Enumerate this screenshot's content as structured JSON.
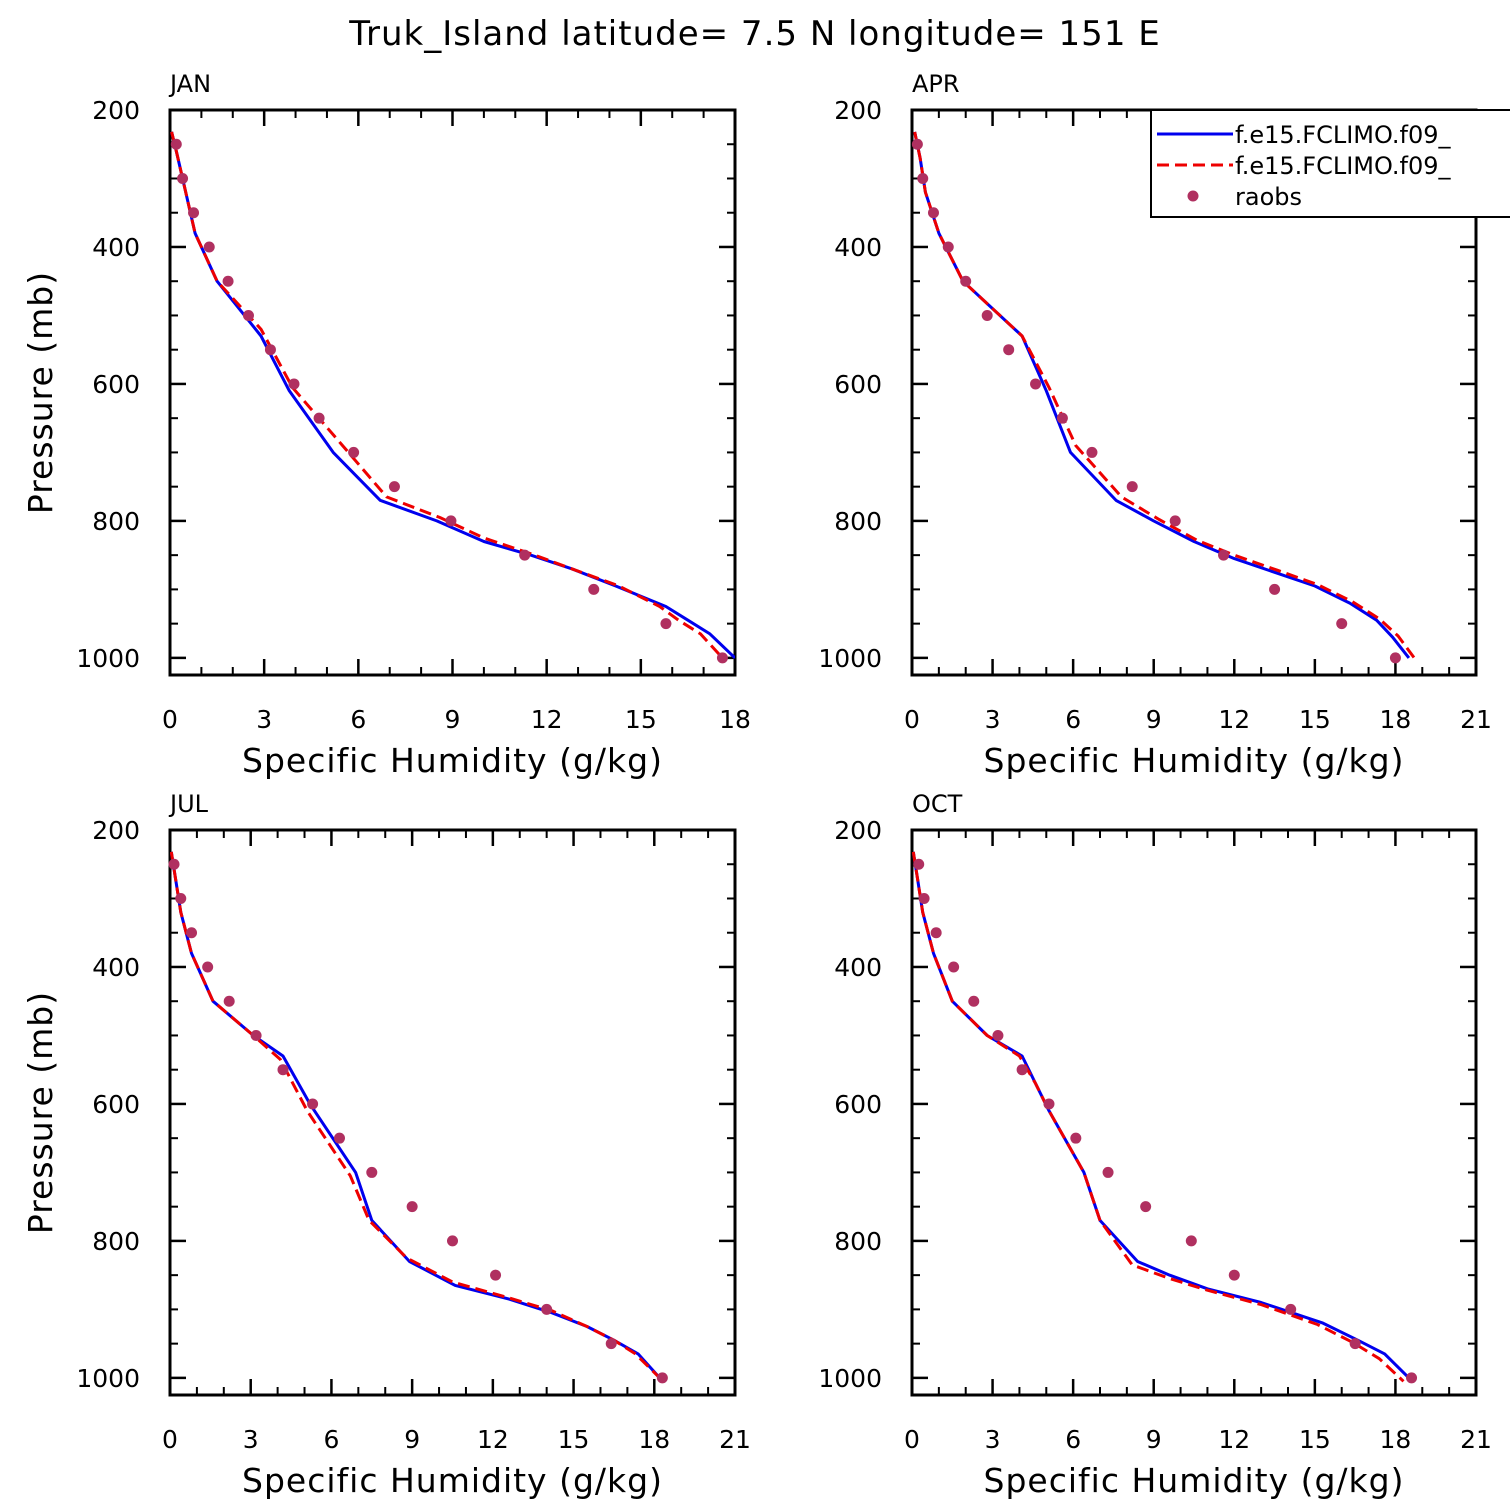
{
  "title": "Truk_Island  latitude= 7.5 N longitude= 151 E",
  "colors": {
    "model_solid": "#0000ee",
    "model_dashed": "#ee0000",
    "raobs": "#b03060",
    "axes": "#000000",
    "background": "#ffffff"
  },
  "legend": {
    "entries": [
      {
        "label": "f.e15.FCLIMO.f09_",
        "style": "solid",
        "color": "#0000ee"
      },
      {
        "label": "f.e15.FCLIMO.f09_",
        "style": "dashed",
        "color": "#ee0000"
      },
      {
        "label": "raobs",
        "style": "marker",
        "color": "#b03060"
      }
    ]
  },
  "chart_data": [
    {
      "type": "line",
      "title": "JAN",
      "xlabel": "Specific Humidity (g/kg)",
      "ylabel": "Pressure (mb)",
      "xlim": [
        0,
        18
      ],
      "ylim": [
        200,
        1025
      ],
      "y_reversed": true,
      "xticks": [
        0,
        3,
        6,
        9,
        12,
        15,
        18
      ],
      "yticks": [
        200,
        400,
        600,
        800,
        1000
      ],
      "series": [
        {
          "style": "solid",
          "color": "#0000ee",
          "x": [
            0.05,
            0.2,
            0.4,
            0.8,
            1.5,
            2.9,
            3.8,
            5.2,
            6.7,
            8.5,
            10.0,
            11.5,
            12.8,
            14.2,
            15.8,
            16.5,
            17.2,
            18.0
          ],
          "y": [
            232,
            260,
            300,
            380,
            450,
            530,
            610,
            700,
            770,
            800,
            830,
            850,
            870,
            895,
            925,
            945,
            965,
            1000
          ]
        },
        {
          "style": "dashed",
          "color": "#ee0000",
          "x": [
            0.05,
            0.2,
            0.4,
            0.8,
            1.5,
            2.9,
            3.9,
            5.5,
            6.9,
            8.6,
            10.0,
            11.5,
            12.8,
            14.3,
            15.6,
            16.2,
            16.9,
            17.6
          ],
          "y": [
            232,
            260,
            300,
            380,
            450,
            520,
            605,
            690,
            765,
            795,
            825,
            848,
            870,
            895,
            925,
            945,
            965,
            1000
          ]
        }
      ],
      "points": {
        "name": "raobs",
        "x": [
          0.2,
          0.4,
          0.75,
          1.25,
          1.85,
          2.5,
          3.2,
          3.95,
          4.75,
          5.85,
          7.15,
          8.95,
          11.3,
          13.5,
          15.8,
          17.6
        ],
        "y": [
          250,
          300,
          350,
          400,
          450,
          500,
          550,
          600,
          650,
          700,
          750,
          800,
          850,
          900,
          950,
          1000
        ]
      }
    },
    {
      "type": "line",
      "title": "APR",
      "xlabel": "Specific Humidity (g/kg)",
      "ylabel": "",
      "xlim": [
        0,
        21
      ],
      "ylim": [
        200,
        1025
      ],
      "y_reversed": true,
      "xticks": [
        0,
        3,
        6,
        9,
        12,
        15,
        18,
        21
      ],
      "yticks": [
        200,
        400,
        600,
        800,
        1000
      ],
      "series": [
        {
          "style": "solid",
          "color": "#0000ee",
          "x": [
            0.1,
            0.3,
            0.5,
            1.0,
            1.9,
            4.1,
            5.0,
            5.9,
            7.6,
            9.0,
            10.5,
            12.0,
            13.5,
            15.0,
            16.3,
            17.3,
            17.9,
            18.5
          ],
          "y": [
            232,
            270,
            320,
            380,
            450,
            530,
            610,
            700,
            770,
            800,
            830,
            855,
            875,
            895,
            920,
            945,
            970,
            1000
          ]
        },
        {
          "style": "dashed",
          "color": "#ee0000",
          "x": [
            0.1,
            0.3,
            0.5,
            1.0,
            1.9,
            4.1,
            5.1,
            6.1,
            7.8,
            9.2,
            10.6,
            12.0,
            13.6,
            15.1,
            16.4,
            17.4,
            18.1,
            18.7
          ],
          "y": [
            232,
            270,
            320,
            380,
            450,
            530,
            605,
            690,
            765,
            798,
            828,
            850,
            872,
            893,
            918,
            943,
            968,
            1000
          ]
        }
      ],
      "points": {
        "name": "raobs",
        "x": [
          0.2,
          0.4,
          0.8,
          1.35,
          2.0,
          2.8,
          3.6,
          4.6,
          5.6,
          6.7,
          8.2,
          9.8,
          11.6,
          13.5,
          16.0,
          18.0
        ],
        "y": [
          250,
          300,
          350,
          400,
          450,
          500,
          550,
          600,
          650,
          700,
          750,
          800,
          850,
          900,
          950,
          1000
        ]
      }
    },
    {
      "type": "line",
      "title": "JUL",
      "xlabel": "Specific Humidity (g/kg)",
      "ylabel": "Pressure (mb)",
      "xlim": [
        0,
        21
      ],
      "ylim": [
        200,
        1025
      ],
      "y_reversed": true,
      "xticks": [
        0,
        3,
        6,
        9,
        12,
        15,
        18,
        21
      ],
      "yticks": [
        200,
        400,
        600,
        800,
        1000
      ],
      "series": [
        {
          "style": "solid",
          "color": "#0000ee",
          "x": [
            0.05,
            0.2,
            0.4,
            0.8,
            1.6,
            3.1,
            4.2,
            5.2,
            6.9,
            7.5,
            8.9,
            10.6,
            12.6,
            14.2,
            15.5,
            16.5,
            17.4,
            18.2
          ],
          "y": [
            232,
            270,
            320,
            380,
            450,
            500,
            530,
            600,
            700,
            770,
            830,
            865,
            885,
            905,
            925,
            945,
            965,
            1000
          ]
        },
        {
          "style": "dashed",
          "color": "#ee0000",
          "x": [
            0.05,
            0.2,
            0.4,
            0.8,
            1.6,
            3.1,
            4.1,
            5.1,
            6.7,
            7.4,
            8.8,
            10.5,
            12.5,
            14.2,
            15.5,
            16.5,
            17.3,
            18.2
          ],
          "y": [
            232,
            270,
            320,
            380,
            450,
            500,
            535,
            610,
            705,
            770,
            825,
            860,
            882,
            902,
            925,
            945,
            965,
            1000
          ]
        }
      ],
      "points": {
        "name": "raobs",
        "x": [
          0.15,
          0.4,
          0.8,
          1.4,
          2.2,
          3.2,
          4.2,
          5.3,
          6.3,
          7.5,
          9.0,
          10.5,
          12.1,
          14.0,
          16.4,
          18.3
        ],
        "y": [
          250,
          300,
          350,
          400,
          450,
          500,
          550,
          600,
          650,
          700,
          750,
          800,
          850,
          900,
          950,
          1000
        ]
      }
    },
    {
      "type": "line",
      "title": "OCT",
      "xlabel": "Specific Humidity (g/kg)",
      "ylabel": "",
      "xlim": [
        0,
        21
      ],
      "ylim": [
        200,
        1025
      ],
      "y_reversed": true,
      "xticks": [
        0,
        3,
        6,
        9,
        12,
        15,
        18,
        21
      ],
      "yticks": [
        200,
        400,
        600,
        800,
        1000
      ],
      "series": [
        {
          "style": "solid",
          "color": "#0000ee",
          "x": [
            0.05,
            0.2,
            0.4,
            0.8,
            1.5,
            2.8,
            4.1,
            4.6,
            5.1,
            6.4,
            7.0,
            8.4,
            9.6,
            11.0,
            13.0,
            15.3,
            16.6,
            17.6,
            18.5
          ],
          "y": [
            232,
            270,
            320,
            380,
            450,
            500,
            530,
            570,
            610,
            700,
            770,
            830,
            850,
            870,
            890,
            920,
            945,
            965,
            1000
          ]
        },
        {
          "style": "dashed",
          "color": "#ee0000",
          "x": [
            0.05,
            0.2,
            0.4,
            0.8,
            1.5,
            2.8,
            4.0,
            4.6,
            5.1,
            6.4,
            7.0,
            8.2,
            9.6,
            11.0,
            13.0,
            15.1,
            16.4,
            17.4,
            18.3
          ],
          "y": [
            232,
            270,
            320,
            380,
            450,
            500,
            530,
            570,
            610,
            700,
            770,
            835,
            855,
            872,
            893,
            922,
            948,
            972,
            1005
          ]
        }
      ],
      "points": {
        "name": "raobs",
        "x": [
          0.25,
          0.45,
          0.9,
          1.55,
          2.3,
          3.2,
          4.1,
          5.1,
          6.1,
          7.3,
          8.7,
          10.4,
          12.0,
          14.1,
          16.5,
          18.6
        ],
        "y": [
          250,
          300,
          350,
          400,
          450,
          500,
          550,
          600,
          650,
          700,
          750,
          800,
          850,
          900,
          950,
          1000
        ]
      }
    }
  ]
}
